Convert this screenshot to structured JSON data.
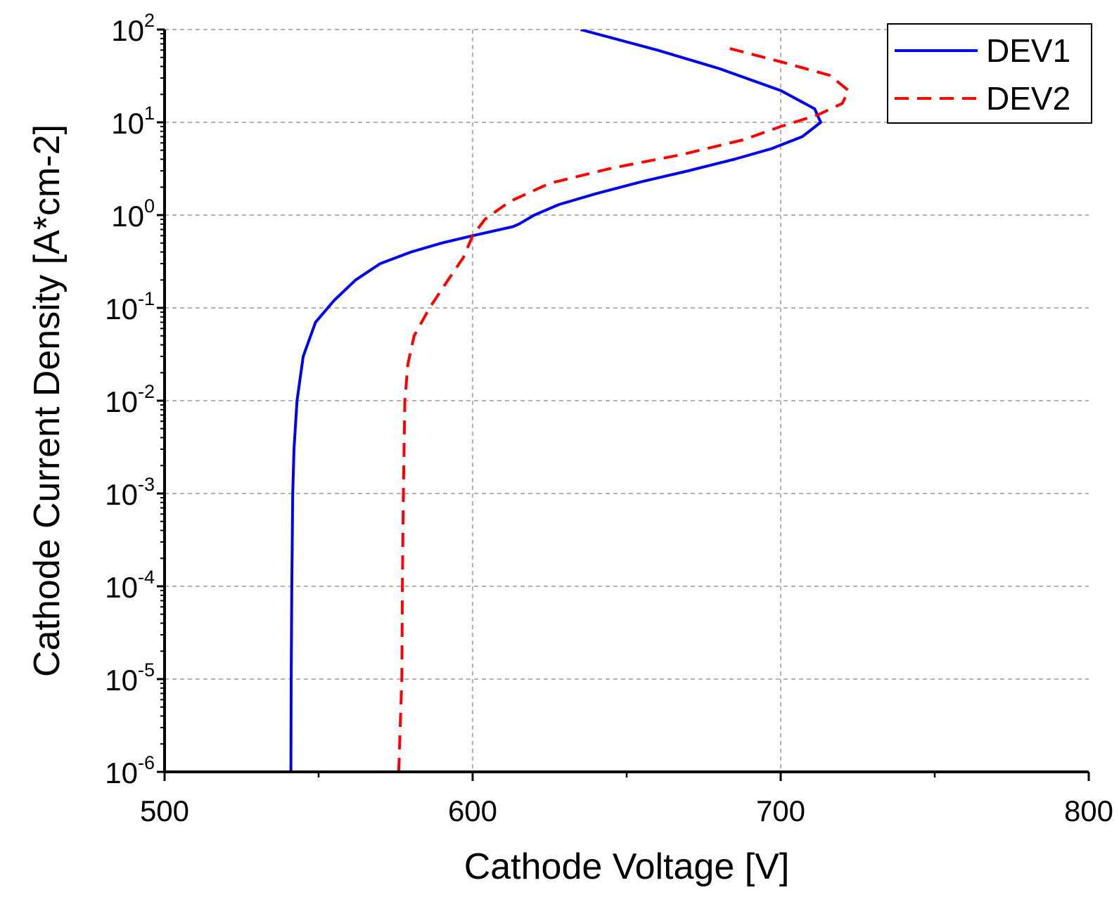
{
  "chart_data": {
    "type": "line",
    "title": "",
    "xlabel": "Cathode Voltage [V]",
    "ylabel": "Cathode Current Density [A*cm-2]",
    "xlim": [
      500,
      800
    ],
    "ylim_exponent": [
      -6,
      2
    ],
    "yscale": "log",
    "grid": true,
    "legend_position": "top-right",
    "x_ticks": [
      {
        "value": 500,
        "label": "500"
      },
      {
        "value": 600,
        "label": "600"
      },
      {
        "value": 700,
        "label": "700"
      },
      {
        "value": 800,
        "label": "800"
      }
    ],
    "y_ticks": [
      {
        "exponent": -6,
        "base": "10",
        "sup": "-6"
      },
      {
        "exponent": -5,
        "base": "10",
        "sup": "-5"
      },
      {
        "exponent": -4,
        "base": "10",
        "sup": "-4"
      },
      {
        "exponent": -3,
        "base": "10",
        "sup": "-3"
      },
      {
        "exponent": -2,
        "base": "10",
        "sup": "-2"
      },
      {
        "exponent": -1,
        "base": "10",
        "sup": "-1"
      },
      {
        "exponent": 0,
        "base": "10",
        "sup": "0"
      },
      {
        "exponent": 1,
        "base": "10",
        "sup": "1"
      },
      {
        "exponent": 2,
        "base": "10",
        "sup": "2"
      }
    ],
    "series": [
      {
        "name": "DEV1",
        "color": "#0000ee",
        "style": "solid",
        "points": [
          [
            541.0,
            1e-06
          ],
          [
            541.1,
            1e-05
          ],
          [
            541.3,
            0.0001
          ],
          [
            541.6,
            0.001
          ],
          [
            542.0,
            0.003
          ],
          [
            543.0,
            0.01
          ],
          [
            545.0,
            0.03
          ],
          [
            549.0,
            0.07
          ],
          [
            555.0,
            0.12
          ],
          [
            562.0,
            0.2
          ],
          [
            570.0,
            0.3
          ],
          [
            580.0,
            0.4
          ],
          [
            590.0,
            0.5
          ],
          [
            600.0,
            0.6
          ],
          [
            613.0,
            0.75
          ],
          [
            615.0,
            0.8
          ],
          [
            620.0,
            1.0
          ],
          [
            628.0,
            1.3
          ],
          [
            640.0,
            1.7
          ],
          [
            655.0,
            2.3
          ],
          [
            670.0,
            3.0
          ],
          [
            685.0,
            4.0
          ],
          [
            697.0,
            5.2
          ],
          [
            707.0,
            7.0
          ],
          [
            713.0,
            10.0
          ],
          [
            711.0,
            14.0
          ],
          [
            700.0,
            22.0
          ],
          [
            680.0,
            38.0
          ],
          [
            660.0,
            60.0
          ],
          [
            635.0,
            100.0
          ]
        ]
      },
      {
        "name": "DEV2",
        "color": "#ff0000",
        "style": "dashed",
        "points": [
          [
            576.0,
            1e-06
          ],
          [
            577.0,
            1e-05
          ],
          [
            577.2,
            0.0001
          ],
          [
            577.5,
            0.001
          ],
          [
            578.0,
            0.01
          ],
          [
            579.0,
            0.025
          ],
          [
            581.0,
            0.05
          ],
          [
            586.0,
            0.1
          ],
          [
            592.0,
            0.2
          ],
          [
            597.0,
            0.35
          ],
          [
            600.0,
            0.6
          ],
          [
            604.0,
            0.9
          ],
          [
            612.0,
            1.4
          ],
          [
            625.0,
            2.2
          ],
          [
            645.0,
            3.2
          ],
          [
            668.0,
            4.5
          ],
          [
            688.0,
            6.5
          ],
          [
            700.0,
            9.0
          ],
          [
            712.0,
            12.0
          ],
          [
            720.0,
            16.0
          ],
          [
            722.0,
            22.0
          ],
          [
            716.0,
            32.0
          ],
          [
            700.0,
            45.0
          ],
          [
            683.0,
            63.0
          ]
        ]
      }
    ]
  }
}
